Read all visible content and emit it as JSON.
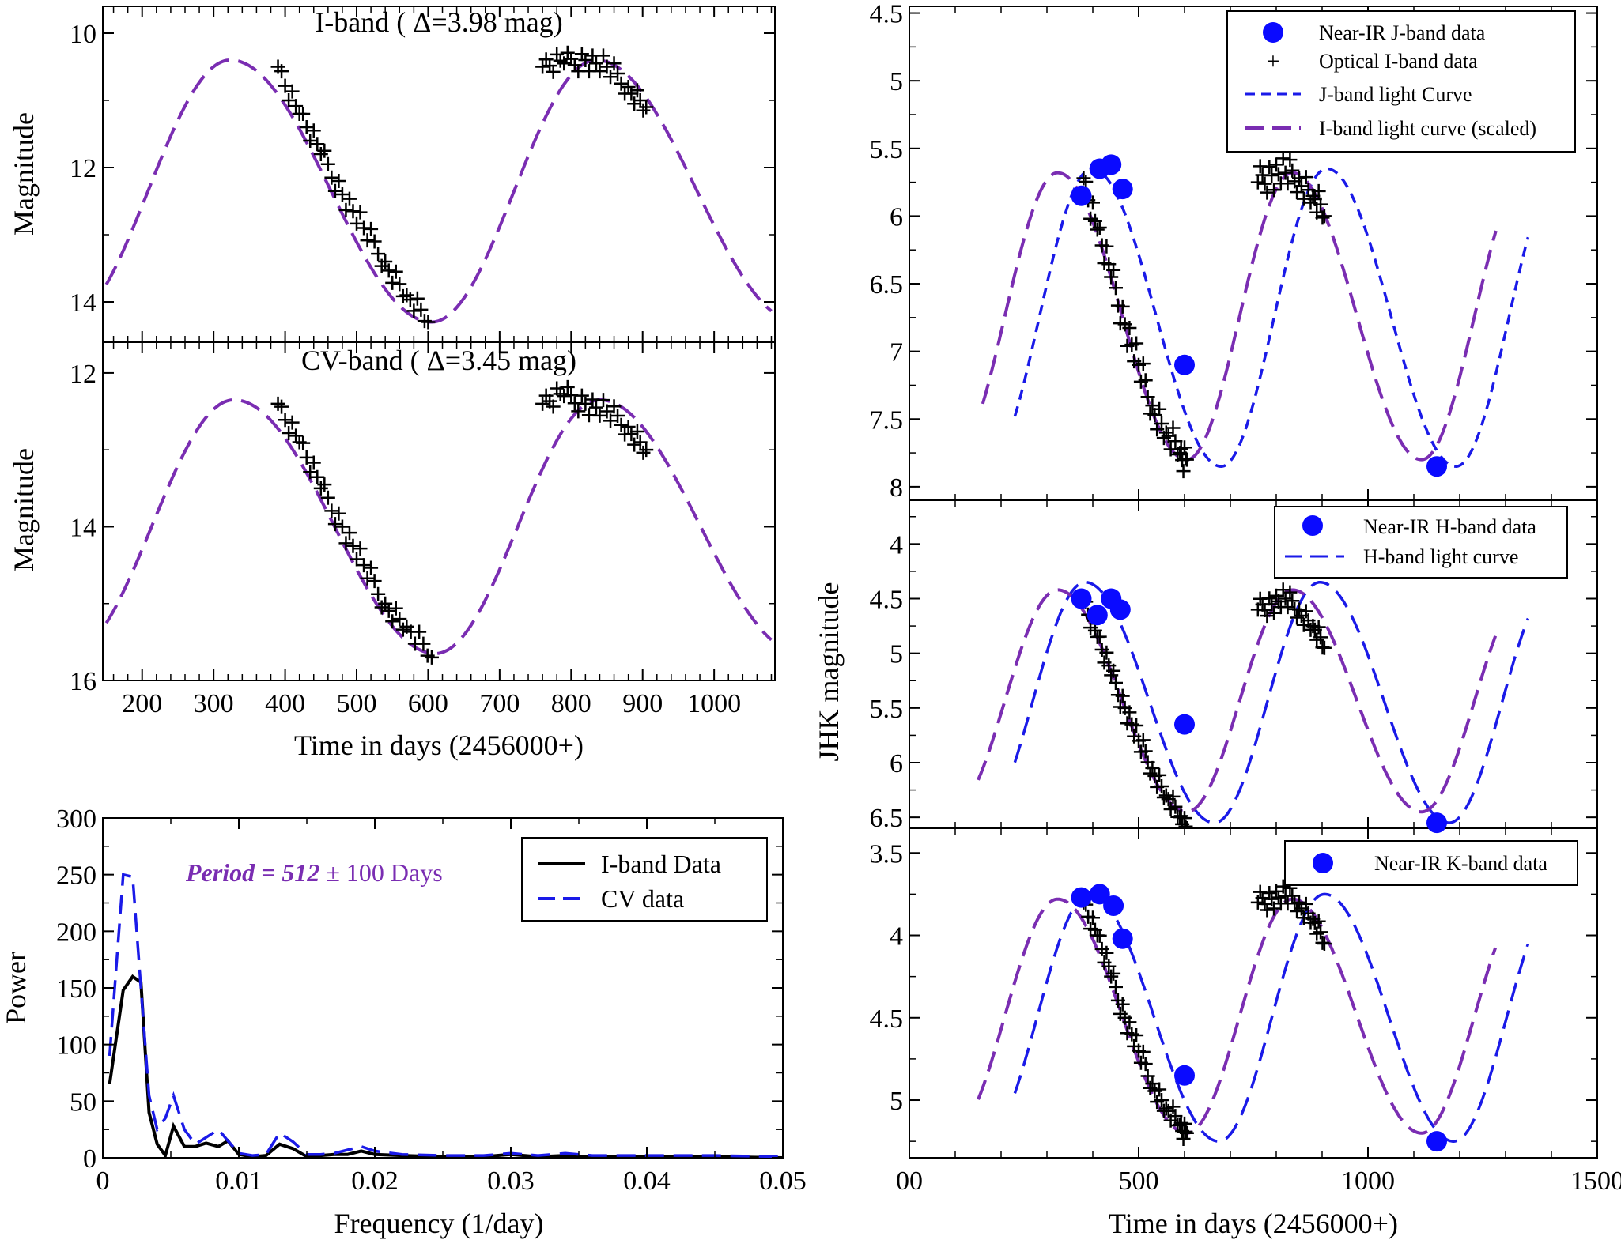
{
  "colors": {
    "purple_curve": "#7a2db2",
    "blue_curve": "#1a1ae8",
    "blue_points": "#0a0aff",
    "black": "#000000"
  },
  "chart_data": [
    {
      "id": "i-band",
      "type": "line",
      "title": "I-band ( Δ=3.98 mag)",
      "xlabel": "",
      "ylabel": "Magnitude",
      "xlim": [
        145,
        1085
      ],
      "ylim": [
        14.6,
        9.6
      ],
      "yticks": [
        10,
        12,
        14
      ],
      "xticks": [
        200,
        300,
        400,
        500,
        600,
        700,
        800,
        900,
        1000
      ],
      "series": [
        {
          "name": "I-band model curve",
          "style": "dashed-purple",
          "model": {
            "t_min": 605,
            "period": 512,
            "bright": 10.4,
            "faint": 14.3,
            "t_start": 150,
            "t_end": 1080
          }
        },
        {
          "name": "I-band data",
          "style": "plus",
          "x": [
            390,
            420,
            450,
            480,
            510,
            540,
            570,
            600,
            760,
            790,
            820,
            850,
            880,
            905
          ],
          "y": [
            10.5,
            11.2,
            11.8,
            12.4,
            12.9,
            13.4,
            13.9,
            14.3,
            10.5,
            10.45,
            10.4,
            10.5,
            10.8,
            11.1
          ]
        }
      ]
    },
    {
      "id": "cv-band",
      "type": "line",
      "title": "CV-band ( Δ=3.45 mag)",
      "xlabel": "Time in days (2456000+)",
      "ylabel": "Magnitude",
      "xlim": [
        145,
        1085
      ],
      "ylim": [
        16,
        11.6
      ],
      "yticks": [
        12,
        14,
        16
      ],
      "xticks": [
        200,
        300,
        400,
        500,
        600,
        700,
        800,
        900,
        1000
      ],
      "xticklabels": [
        "200",
        "300",
        "400",
        "500",
        "600",
        "700",
        "800",
        "900",
        "1000"
      ],
      "series": [
        {
          "name": "CV model curve",
          "style": "dashed-purple",
          "model": {
            "t_min": 610,
            "period": 512,
            "bright": 12.35,
            "faint": 15.65,
            "t_start": 150,
            "t_end": 1080
          }
        },
        {
          "name": "CV data",
          "style": "plus",
          "x": [
            390,
            420,
            450,
            480,
            510,
            540,
            570,
            605,
            760,
            790,
            820,
            850,
            880,
            905
          ],
          "y": [
            12.4,
            12.9,
            13.5,
            14.0,
            14.5,
            15.0,
            15.3,
            15.7,
            12.4,
            12.3,
            12.4,
            12.5,
            12.7,
            13.0
          ]
        }
      ]
    },
    {
      "id": "periodogram",
      "type": "line",
      "title": "",
      "annotation": {
        "italic": "Period = 512",
        "rest": " ± 100 Days"
      },
      "xlabel": "Frequency (1/day)",
      "ylabel": "Power",
      "xlim": [
        0,
        0.05
      ],
      "ylim": [
        0,
        300
      ],
      "yticks": [
        0,
        50,
        100,
        150,
        200,
        250,
        300
      ],
      "yticklabels": [
        "0",
        "50",
        "100",
        "150",
        "200",
        "250",
        "300"
      ],
      "xticks": [
        0,
        0.01,
        0.02,
        0.03,
        0.04,
        0.05
      ],
      "xticklabels": [
        "0",
        "0.01",
        "0.02",
        "0.03",
        "0.04",
        "0.05"
      ],
      "legend": {
        "position": "top-right",
        "entries": [
          "I-band Data",
          "CV data"
        ]
      },
      "series": [
        {
          "name": "I-band Data",
          "style": "solid-black",
          "x": [
            0.0005,
            0.0015,
            0.0022,
            0.0028,
            0.0034,
            0.004,
            0.0046,
            0.0052,
            0.006,
            0.0068,
            0.0076,
            0.0085,
            0.0092,
            0.01,
            0.011,
            0.012,
            0.013,
            0.014,
            0.015,
            0.016,
            0.017,
            0.018,
            0.019,
            0.02,
            0.022,
            0.025,
            0.028,
            0.03,
            0.032,
            0.034,
            0.036,
            0.04,
            0.045,
            0.05
          ],
          "y": [
            65,
            148,
            160,
            155,
            40,
            12,
            2,
            28,
            10,
            10,
            13,
            10,
            15,
            3,
            1,
            2,
            12,
            8,
            1,
            2,
            3,
            3,
            6,
            3,
            2,
            1,
            1,
            3,
            1,
            2,
            1,
            1,
            1,
            0
          ]
        },
        {
          "name": "CV data",
          "style": "dashed-blue",
          "x": [
            0.0005,
            0.0015,
            0.0022,
            0.0028,
            0.0034,
            0.004,
            0.0046,
            0.0052,
            0.006,
            0.0068,
            0.0076,
            0.0085,
            0.0092,
            0.01,
            0.011,
            0.012,
            0.013,
            0.014,
            0.015,
            0.016,
            0.017,
            0.018,
            0.019,
            0.02,
            0.022,
            0.025,
            0.028,
            0.03,
            0.032,
            0.034,
            0.036,
            0.04,
            0.045,
            0.05
          ],
          "y": [
            90,
            250,
            248,
            150,
            55,
            25,
            35,
            55,
            25,
            12,
            18,
            25,
            15,
            4,
            2,
            3,
            22,
            14,
            3,
            3,
            4,
            7,
            10,
            6,
            3,
            2,
            2,
            4,
            2,
            4,
            2,
            2,
            2,
            1
          ]
        }
      ]
    },
    {
      "id": "j-band",
      "type": "line",
      "title": "",
      "xlabel": "",
      "ylabel": "",
      "xlim": [
        0,
        1500
      ],
      "ylim": [
        8.1,
        4.45
      ],
      "yticks": [
        4.5,
        5,
        5.5,
        6,
        6.5,
        7,
        7.5,
        8
      ],
      "yticklabels": [
        "4.5",
        "5",
        "5.5",
        "6",
        "6.5",
        "7",
        "7.5",
        "8"
      ],
      "legend": {
        "position": "top-right",
        "entries": [
          "Near-IR J-band data",
          "Optical I-band data",
          "J-band light Curve",
          "I-band light curve (scaled)"
        ]
      },
      "series": [
        {
          "name": "J-band light Curve",
          "style": "dashed-blue-short",
          "model": {
            "t_min": 680,
            "period": 512,
            "bright": 5.65,
            "faint": 7.85,
            "t_start": 230,
            "t_end": 1350
          }
        },
        {
          "name": "I-band light curve (scaled)",
          "style": "dashed-purple",
          "model": {
            "t_min": 605,
            "period": 512,
            "bright": 5.68,
            "faint": 7.8,
            "t_start": 160,
            "t_end": 1280
          }
        },
        {
          "name": "Optical I-band data",
          "style": "plus",
          "x": [
            380,
            410,
            440,
            470,
            500,
            530,
            560,
            590,
            605,
            760,
            790,
            820,
            850,
            880,
            905
          ],
          "y": [
            5.72,
            6.1,
            6.45,
            6.8,
            7.1,
            7.4,
            7.6,
            7.75,
            7.8,
            5.75,
            5.7,
            5.68,
            5.72,
            5.85,
            6.0
          ]
        },
        {
          "name": "Near-IR J-band data",
          "style": "dot",
          "x": [
            375,
            415,
            440,
            465,
            600,
            1150
          ],
          "y": [
            5.85,
            5.65,
            5.62,
            5.8,
            7.1,
            7.85
          ]
        }
      ]
    },
    {
      "id": "h-band",
      "type": "line",
      "title": "",
      "xlabel": "",
      "ylabel": "JHK magnitude",
      "xlim": [
        0,
        1500
      ],
      "ylim": [
        6.6,
        3.6
      ],
      "yticks": [
        4,
        4.5,
        5,
        5.5,
        6,
        6.5
      ],
      "yticklabels": [
        "4",
        "4.5",
        "5",
        "5.5",
        "6",
        "6.5"
      ],
      "legend": {
        "position": "top-right",
        "entries": [
          "Near-IR H-band data",
          "H-band light curve"
        ]
      },
      "series": [
        {
          "name": "H-band light curve",
          "style": "dashed-blue",
          "model": {
            "t_min": 665,
            "period": 512,
            "bright": 4.35,
            "faint": 6.55,
            "t_start": 230,
            "t_end": 1350
          }
        },
        {
          "name": "I-band scaled",
          "style": "dashed-purple",
          "model": {
            "t_min": 605,
            "period": 512,
            "bright": 4.42,
            "faint": 6.45,
            "t_start": 150,
            "t_end": 1280
          }
        },
        {
          "name": "Optical I-band data",
          "style": "plus",
          "x": [
            380,
            410,
            440,
            470,
            500,
            530,
            560,
            590,
            605,
            760,
            790,
            820,
            850,
            880,
            905
          ],
          "y": [
            4.5,
            4.85,
            5.2,
            5.5,
            5.8,
            6.05,
            6.3,
            6.5,
            6.6,
            4.6,
            4.55,
            4.5,
            4.6,
            4.75,
            4.95
          ]
        },
        {
          "name": "Near-IR H-band data",
          "style": "dot",
          "x": [
            375,
            410,
            440,
            460,
            600,
            1150
          ],
          "y": [
            4.5,
            4.65,
            4.5,
            4.6,
            5.65,
            6.55
          ]
        }
      ]
    },
    {
      "id": "k-band",
      "type": "line",
      "title": "",
      "xlabel": "Time in days (2456000+)",
      "ylabel": "",
      "xlim": [
        0,
        1500
      ],
      "ylim": [
        5.35,
        3.35
      ],
      "yticks": [
        3.5,
        4,
        4.5,
        5
      ],
      "yticklabels": [
        "3.5",
        "4",
        "4.5",
        "5"
      ],
      "xticks": [
        0,
        500,
        1000,
        1500
      ],
      "xticklabels": [
        "00",
        "500",
        "1000",
        "1500"
      ],
      "legend": {
        "position": "top-right",
        "entries": [
          "Near-IR K-band data"
        ]
      },
      "series": [
        {
          "name": "K-band light curve",
          "style": "dashed-blue",
          "model": {
            "t_min": 675,
            "period": 512,
            "bright": 3.75,
            "faint": 5.25,
            "t_start": 230,
            "t_end": 1350
          }
        },
        {
          "name": "I-band scaled",
          "style": "dashed-purple",
          "model": {
            "t_min": 605,
            "period": 512,
            "bright": 3.78,
            "faint": 5.2,
            "t_start": 150,
            "t_end": 1280
          }
        },
        {
          "name": "Optical I-band data",
          "style": "plus",
          "x": [
            380,
            410,
            440,
            470,
            500,
            530,
            560,
            590,
            605,
            760,
            790,
            820,
            850,
            880,
            905
          ],
          "y": [
            3.8,
            4.0,
            4.25,
            4.5,
            4.7,
            4.9,
            5.05,
            5.15,
            5.2,
            3.8,
            3.78,
            3.76,
            3.8,
            3.9,
            4.05
          ]
        },
        {
          "name": "Near-IR K-band data",
          "style": "dot",
          "x": [
            375,
            415,
            445,
            465,
            600,
            1150
          ],
          "y": [
            3.77,
            3.75,
            3.82,
            4.02,
            4.85,
            5.25
          ]
        }
      ]
    }
  ]
}
